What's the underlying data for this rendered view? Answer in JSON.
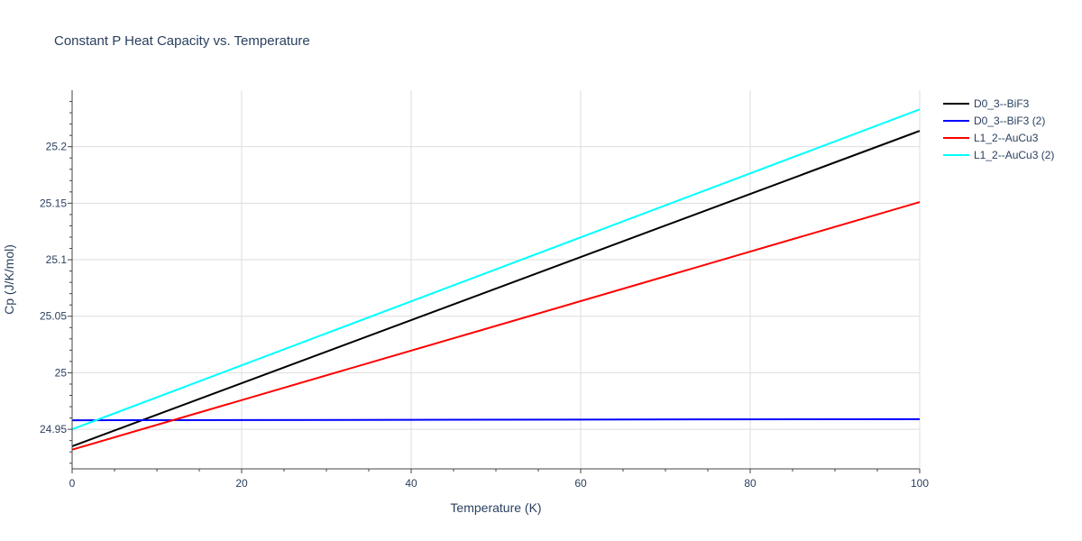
{
  "chart_data": {
    "type": "line",
    "title": "Constant P Heat Capacity vs. Temperature",
    "xlabel": "Temperature (K)",
    "ylabel": "Cp (J/K/mol)",
    "xlim": [
      0,
      100
    ],
    "ylim": [
      24.915,
      25.25
    ],
    "x_ticks": [
      0,
      20,
      40,
      60,
      80,
      100
    ],
    "x_tick_labels": [
      "0",
      "20",
      "40",
      "60",
      "80",
      "100"
    ],
    "y_ticks": [
      24.95,
      25.0,
      25.05,
      25.1,
      25.15,
      25.2
    ],
    "y_tick_labels": [
      "24.95",
      "25",
      "25.05",
      "25.1",
      "25.15",
      "25.2"
    ],
    "grid": true,
    "legend_position": "right",
    "series": [
      {
        "name": "D0_3--BiF3",
        "color": "#000000",
        "x": [
          0,
          100
        ],
        "y": [
          24.935,
          25.214
        ]
      },
      {
        "name": "D0_3--BiF3 (2)",
        "color": "#0000ff",
        "x": [
          0,
          100
        ],
        "y": [
          24.958,
          24.959
        ]
      },
      {
        "name": "L1_2--AuCu3",
        "color": "#ff0000",
        "x": [
          0,
          100
        ],
        "y": [
          24.932,
          25.151
        ]
      },
      {
        "name": "L1_2--AuCu3 (2)",
        "color": "#00ffff",
        "x": [
          0,
          100
        ],
        "y": [
          24.95,
          25.233
        ]
      }
    ]
  }
}
